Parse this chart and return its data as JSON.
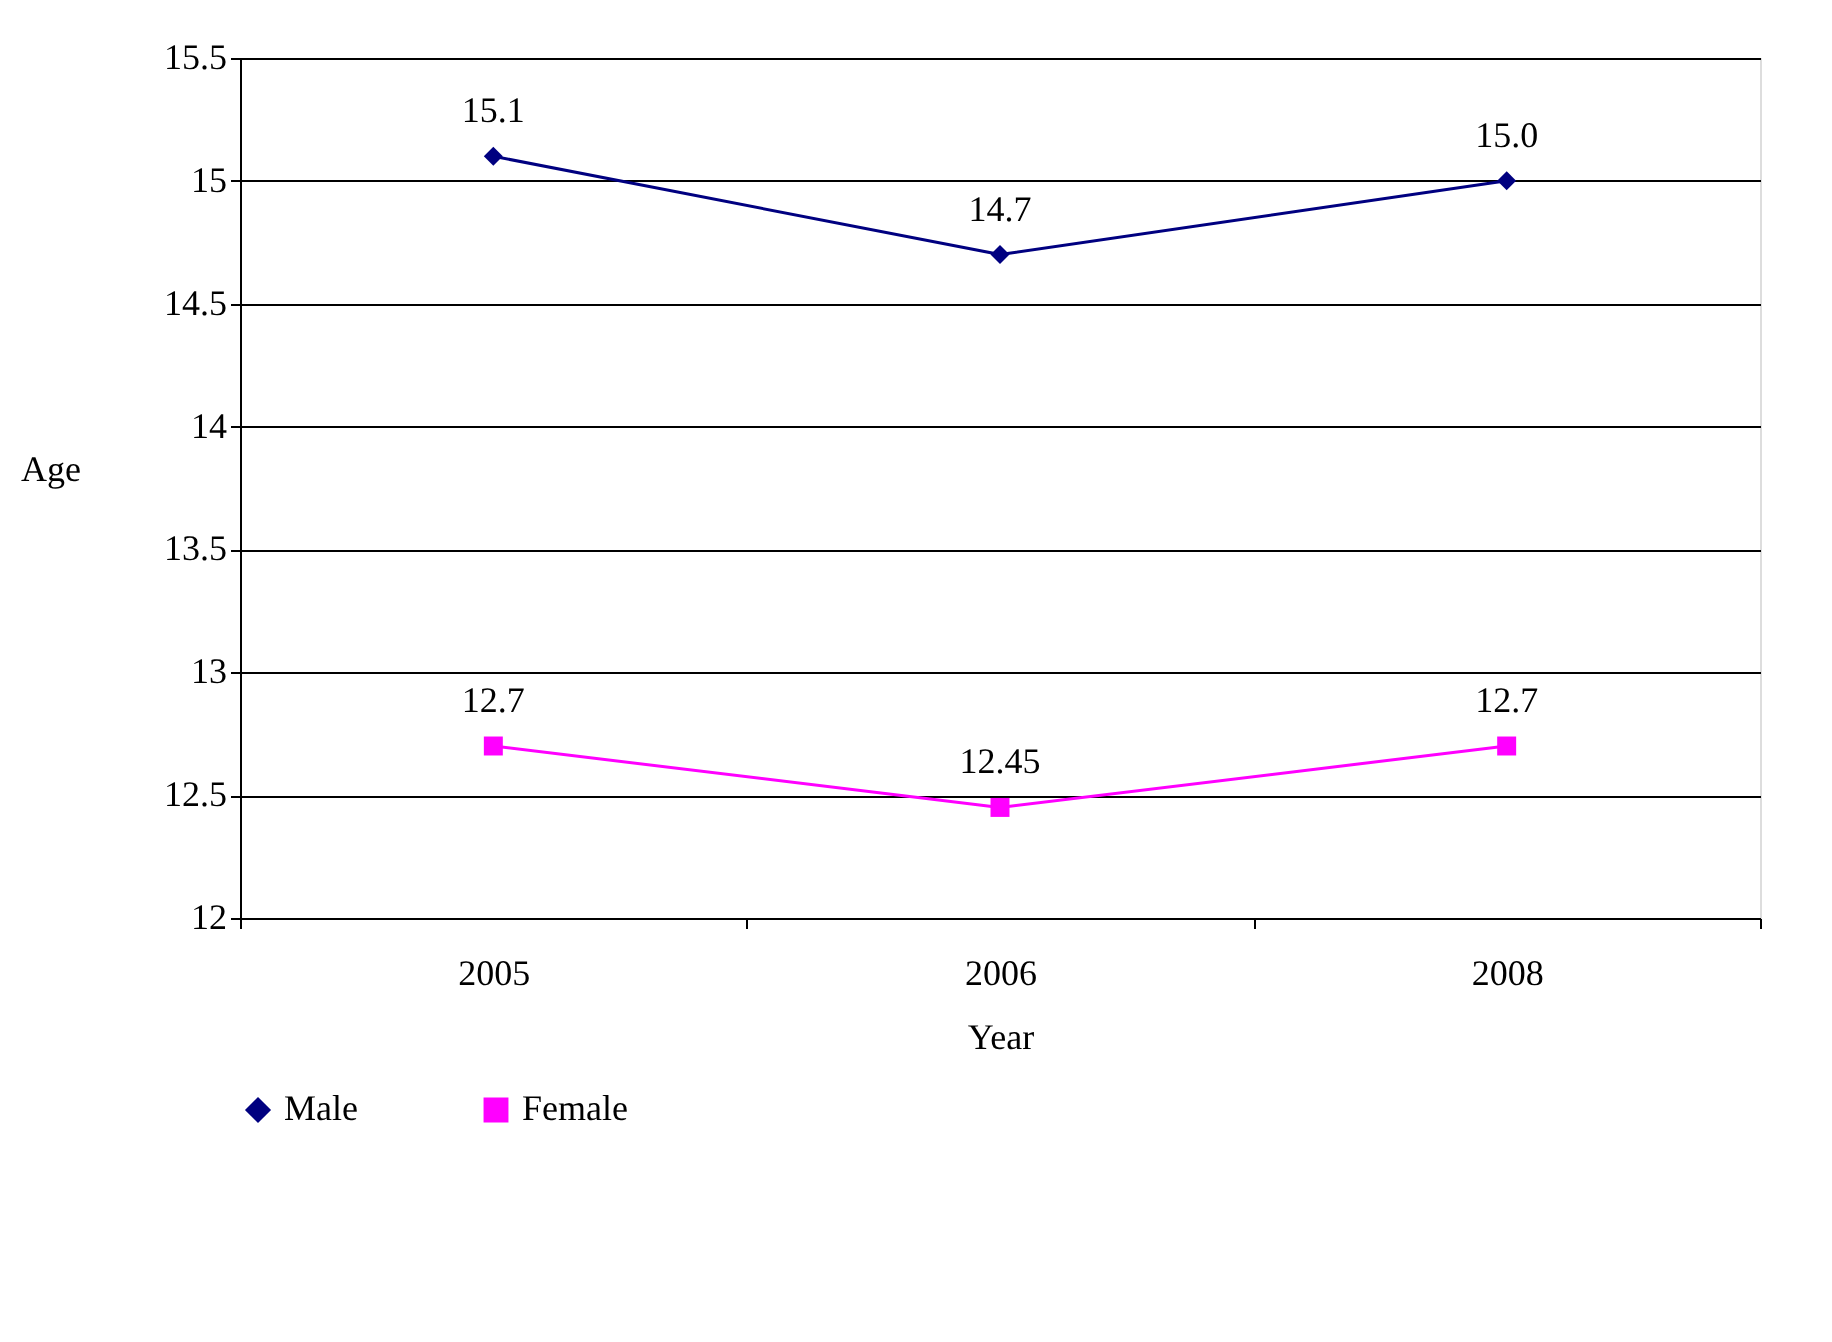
{
  "chart_data": {
    "type": "line",
    "xlabel": "Year",
    "ylabel": "Age",
    "categories": [
      "2005",
      "2006",
      "2008"
    ],
    "series": [
      {
        "name": "Male",
        "color": "#000080",
        "marker": "diamond",
        "values": [
          15.1,
          14.7,
          15.0
        ],
        "value_labels": [
          "15.1",
          "14.7",
          "15.0"
        ]
      },
      {
        "name": "Female",
        "color": "#ff00ff",
        "marker": "square",
        "values": [
          12.7,
          12.45,
          12.7
        ],
        "value_labels": [
          "12.7",
          "12.45",
          "12.7"
        ]
      }
    ],
    "ylim": [
      12,
      15.5
    ],
    "yticks": [
      12,
      12.5,
      13,
      13.5,
      14,
      14.5,
      15,
      15.5
    ],
    "grid": "y",
    "legend": "bottom",
    "line_style": "solid"
  }
}
